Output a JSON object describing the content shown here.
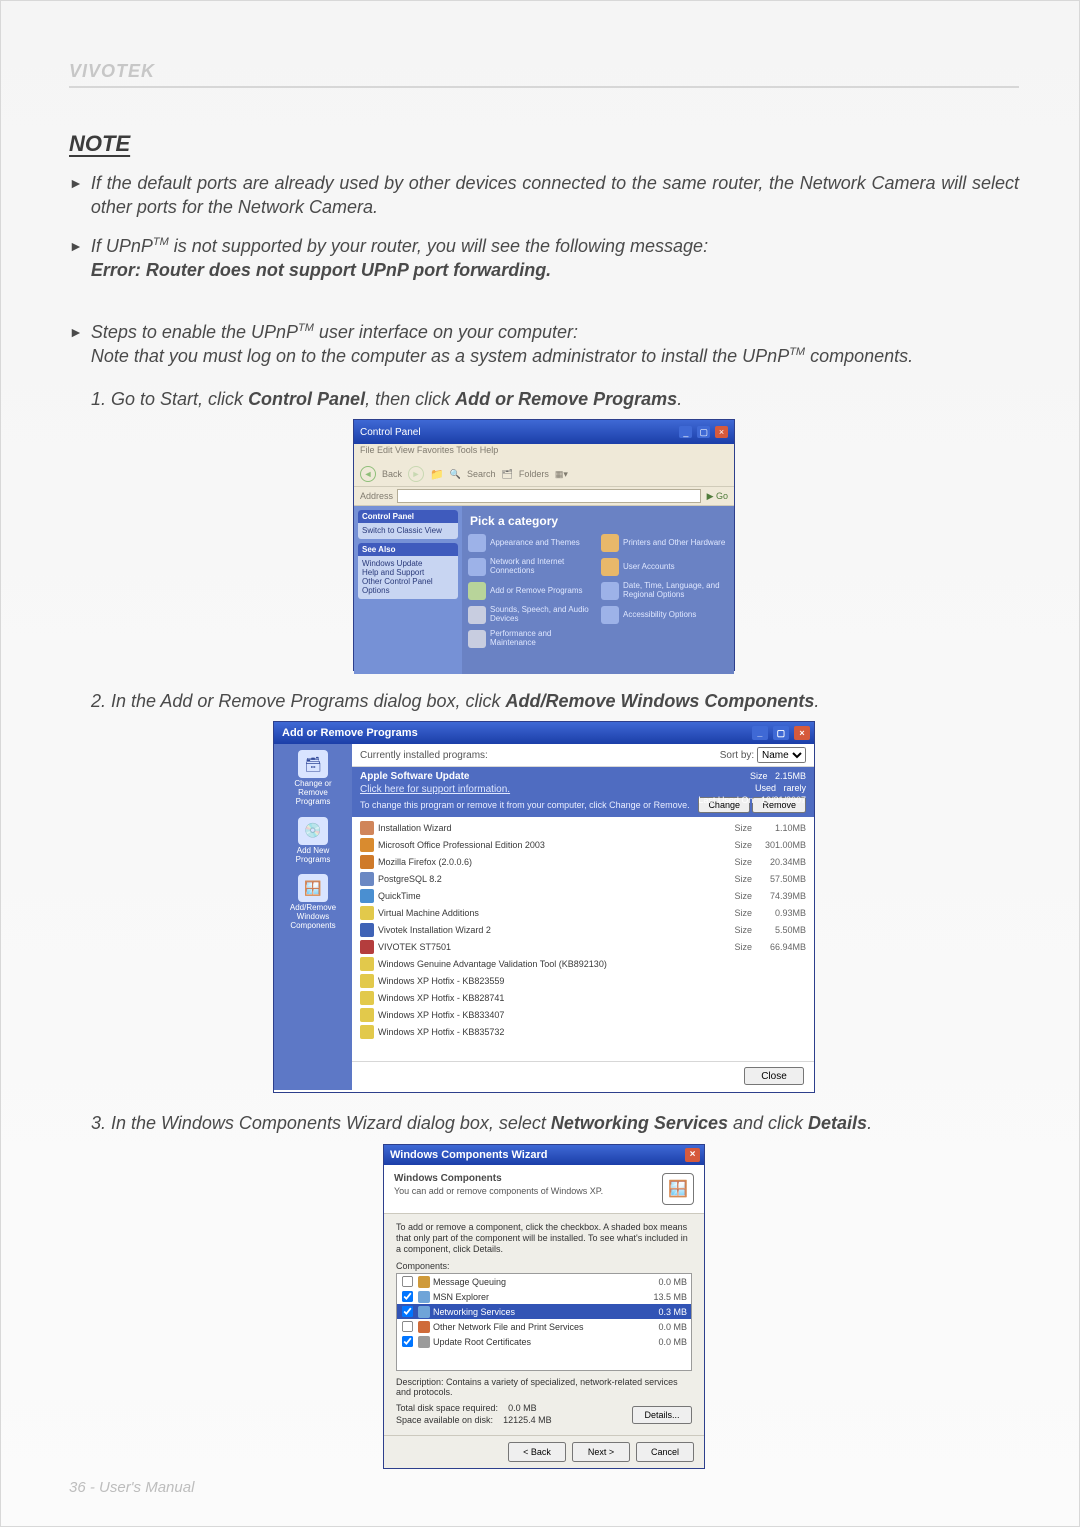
{
  "brand": "VIVOTEK",
  "note_heading": "NOTE",
  "bullet1": "If the default ports are already used by other devices connected to the same router, the Network Camera will select other ports for the Network Camera.",
  "bullet2_pre": "If UPnP",
  "tm": "TM",
  "bullet2_post": " is not supported by your router, you will see the following message:",
  "bullet2_err": "Error: Router does not support UPnP port forwarding.",
  "bullet3_pre": "Steps to enable the UPnP",
  "bullet3_post": " user interface on your computer:",
  "bullet3_note_a": "Note that you must log on to the computer as a system administrator to install the UPnP",
  "bullet3_note_b": " components.",
  "step1_a": "1. Go to Start, click ",
  "step1_b": "Control Panel",
  "step1_c": ", then click ",
  "step1_d": "Add or Remove Programs",
  "step1_e": ".",
  "step2_a": "2. In the Add or Remove Programs dialog box, click ",
  "step2_b": "Add/Remove Windows Components",
  "step2_c": ".",
  "step3_a": "3. In the Windows Components Wizard dialog box, select ",
  "step3_b": "Networking Services",
  "step3_c": " and click ",
  "step3_d": "Details",
  "step3_e": ".",
  "footer": "36 - User's Manual",
  "cp": {
    "title": "Control Panel",
    "menu": "File   Edit   View   Favorites   Tools   Help",
    "back": "Back",
    "search": "Search",
    "folders": "Folders",
    "addr_label": "Address",
    "go": "Go",
    "side1_hdr": "Control Panel",
    "side1_link": "Switch to Classic View",
    "side2_hdr": "See Also",
    "side2_a": "Windows Update",
    "side2_b": "Help and Support",
    "side2_c": "Other Control Panel Options",
    "pick": "Pick a category",
    "cats": [
      "Appearance and Themes",
      "Printers and Other Hardware",
      "Network and Internet Connections",
      "User Accounts",
      "Add or Remove Programs",
      "Date, Time, Language, and Regional Options",
      "Sounds, Speech, and Audio Devices",
      "Accessibility Options",
      "Performance and Maintenance",
      ""
    ]
  },
  "arp": {
    "title": "Add or Remove Programs",
    "side": [
      "Change or Remove Programs",
      "Add New Programs",
      "Add/Remove Windows Components"
    ],
    "top_label": "Currently installed programs:",
    "sort_label": "Sort by:",
    "sort_value": "Name",
    "hi_name": "Apple Software Update",
    "hi_support": "Click here for support information.",
    "hi_size_lbl": "Size",
    "hi_size": "2.15MB",
    "hi_used_lbl": "Used",
    "hi_used": "rarely",
    "hi_last_lbl": "Last Used On",
    "hi_last": "10/21/2007",
    "hi_desc": "To change this program or remove it from your computer, click Change or Remove.",
    "hi_change": "Change",
    "hi_remove": "Remove",
    "rows": [
      {
        "name": "Installation Wizard",
        "size": "1.10MB",
        "color": "#d0855a"
      },
      {
        "name": "Microsoft Office Professional Edition 2003",
        "size": "301.00MB",
        "color": "#d98b2f"
      },
      {
        "name": "Mozilla Firefox (2.0.0.6)",
        "size": "20.34MB",
        "color": "#cf7a2a"
      },
      {
        "name": "PostgreSQL 8.2",
        "size": "57.50MB",
        "color": "#6b88c3"
      },
      {
        "name": "QuickTime",
        "size": "74.39MB",
        "color": "#4a8fd1"
      },
      {
        "name": "Virtual Machine Additions",
        "size": "0.93MB",
        "color": "#e2c94b"
      },
      {
        "name": "Vivotek Installation Wizard 2",
        "size": "5.50MB",
        "color": "#3f63b6"
      },
      {
        "name": "VIVOTEK ST7501",
        "size": "66.94MB",
        "color": "#b43d3d"
      },
      {
        "name": "Windows Genuine Advantage Validation Tool (KB892130)",
        "size": "",
        "color": "#e2c94b"
      },
      {
        "name": "Windows XP Hotfix - KB823559",
        "size": "",
        "color": "#e2c94b"
      },
      {
        "name": "Windows XP Hotfix - KB828741",
        "size": "",
        "color": "#e2c94b"
      },
      {
        "name": "Windows XP Hotfix - KB833407",
        "size": "",
        "color": "#e2c94b"
      },
      {
        "name": "Windows XP Hotfix - KB835732",
        "size": "",
        "color": "#e2c94b"
      }
    ],
    "size_hdr": "Size",
    "close": "Close"
  },
  "wcw": {
    "title": "Windows Components Wizard",
    "h_title": "Windows Components",
    "h_sub": "You can add or remove components of Windows XP.",
    "inst": "To add or remove a component, click the checkbox. A shaded box means that only part of the component will be installed. To see what's included in a component, click Details.",
    "comp_label": "Components:",
    "items": [
      {
        "name": "Message Queuing",
        "size": "0.0 MB",
        "checked": false,
        "sel": false,
        "color": "#cf9a3a"
      },
      {
        "name": "MSN Explorer",
        "size": "13.5 MB",
        "checked": true,
        "sel": false,
        "color": "#6fa4d8"
      },
      {
        "name": "Networking Services",
        "size": "0.3 MB",
        "checked": true,
        "sel": true,
        "color": "#6fa4d8"
      },
      {
        "name": "Other Network File and Print Services",
        "size": "0.0 MB",
        "checked": false,
        "sel": false,
        "color": "#cf6b3a"
      },
      {
        "name": "Update Root Certificates",
        "size": "0.0 MB",
        "checked": true,
        "sel": false,
        "color": "#9b9b9b"
      }
    ],
    "desc": "Description:  Contains a variety of specialized, network-related services and protocols.",
    "req_lbl": "Total disk space required:",
    "req_val": "0.0 MB",
    "avail_lbl": "Space available on disk:",
    "avail_val": "12125.4 MB",
    "details": "Details...",
    "back": "< Back",
    "next": "Next >",
    "cancel": "Cancel"
  }
}
